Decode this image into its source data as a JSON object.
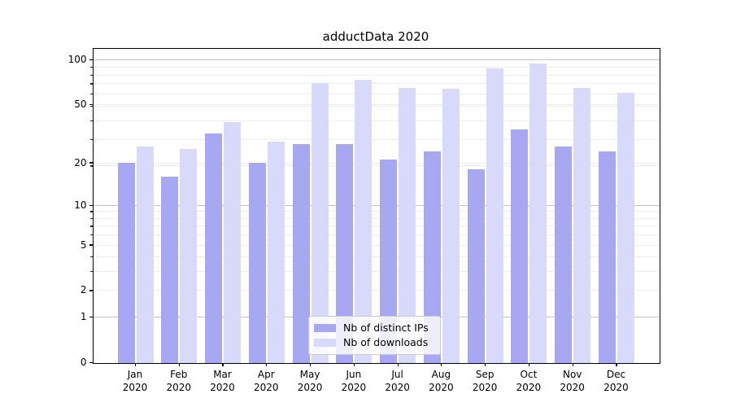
{
  "figure": {
    "title": "adductData 2020"
  },
  "chart_data": {
    "type": "bar",
    "title": "adductData 2020",
    "categories": [
      "Jan",
      "Feb",
      "Mar",
      "Apr",
      "May",
      "Jun",
      "Jul",
      "Aug",
      "Sep",
      "Oct",
      "Nov",
      "Dec"
    ],
    "x_tick_second_line": "2020",
    "series": [
      {
        "name": "Nb of distinct IPs",
        "color": "#a8a8f2",
        "values": [
          20,
          16,
          32,
          20,
          27,
          27,
          21,
          24,
          18,
          34,
          26,
          24
        ]
      },
      {
        "name": "Nb of downloads",
        "color": "#d9dafb",
        "values": [
          26,
          25,
          38,
          28,
          70,
          73,
          65,
          64,
          88,
          94,
          65,
          60
        ]
      }
    ],
    "xlabel": "",
    "ylabel": "",
    "y_scale": "log10(1+value)",
    "y_ticks": [
      0,
      1,
      2,
      5,
      10,
      20,
      50,
      100
    ],
    "y_major_gridlines": [
      1,
      10,
      100
    ],
    "ylim": [
      0,
      119
    ],
    "grid": true,
    "legend_position": "lower center",
    "colors": {
      "axis": "#000000",
      "grid_major": "#c3c3c3",
      "grid_minor": "#ededed",
      "text": "#000000"
    }
  }
}
